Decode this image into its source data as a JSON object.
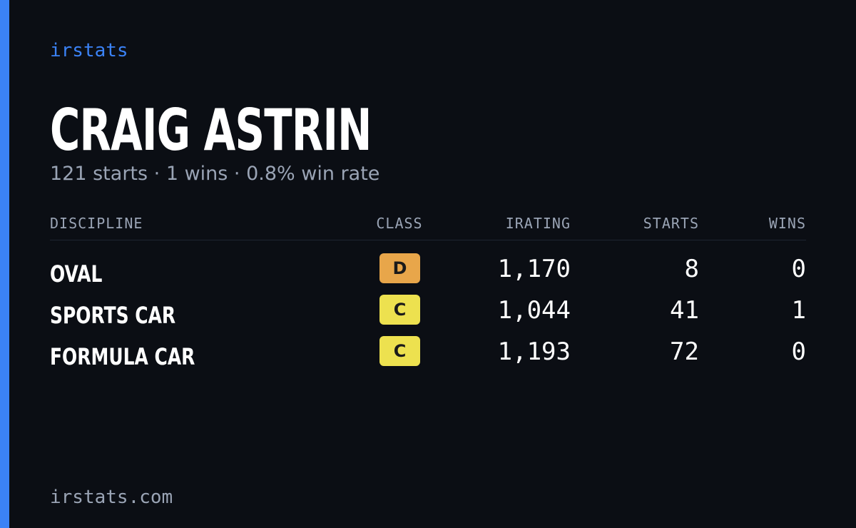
{
  "header": {
    "brand": "irstats",
    "name": "CRAIG ASTRIN",
    "summary": "121 starts · 1 wins · 0.8% win rate"
  },
  "table": {
    "columns": [
      "DISCIPLINE",
      "CLASS",
      "IRATING",
      "STARTS",
      "WINS"
    ],
    "rows": [
      [
        "OVAL",
        "D",
        "1,170",
        "8",
        "0"
      ],
      [
        "SPORTS CAR",
        "C",
        "1,044",
        "41",
        "1"
      ],
      [
        "FORMULA CAR",
        "C",
        "1,193",
        "72",
        "0"
      ]
    ]
  },
  "footer": {
    "site": "irstats.com"
  }
}
